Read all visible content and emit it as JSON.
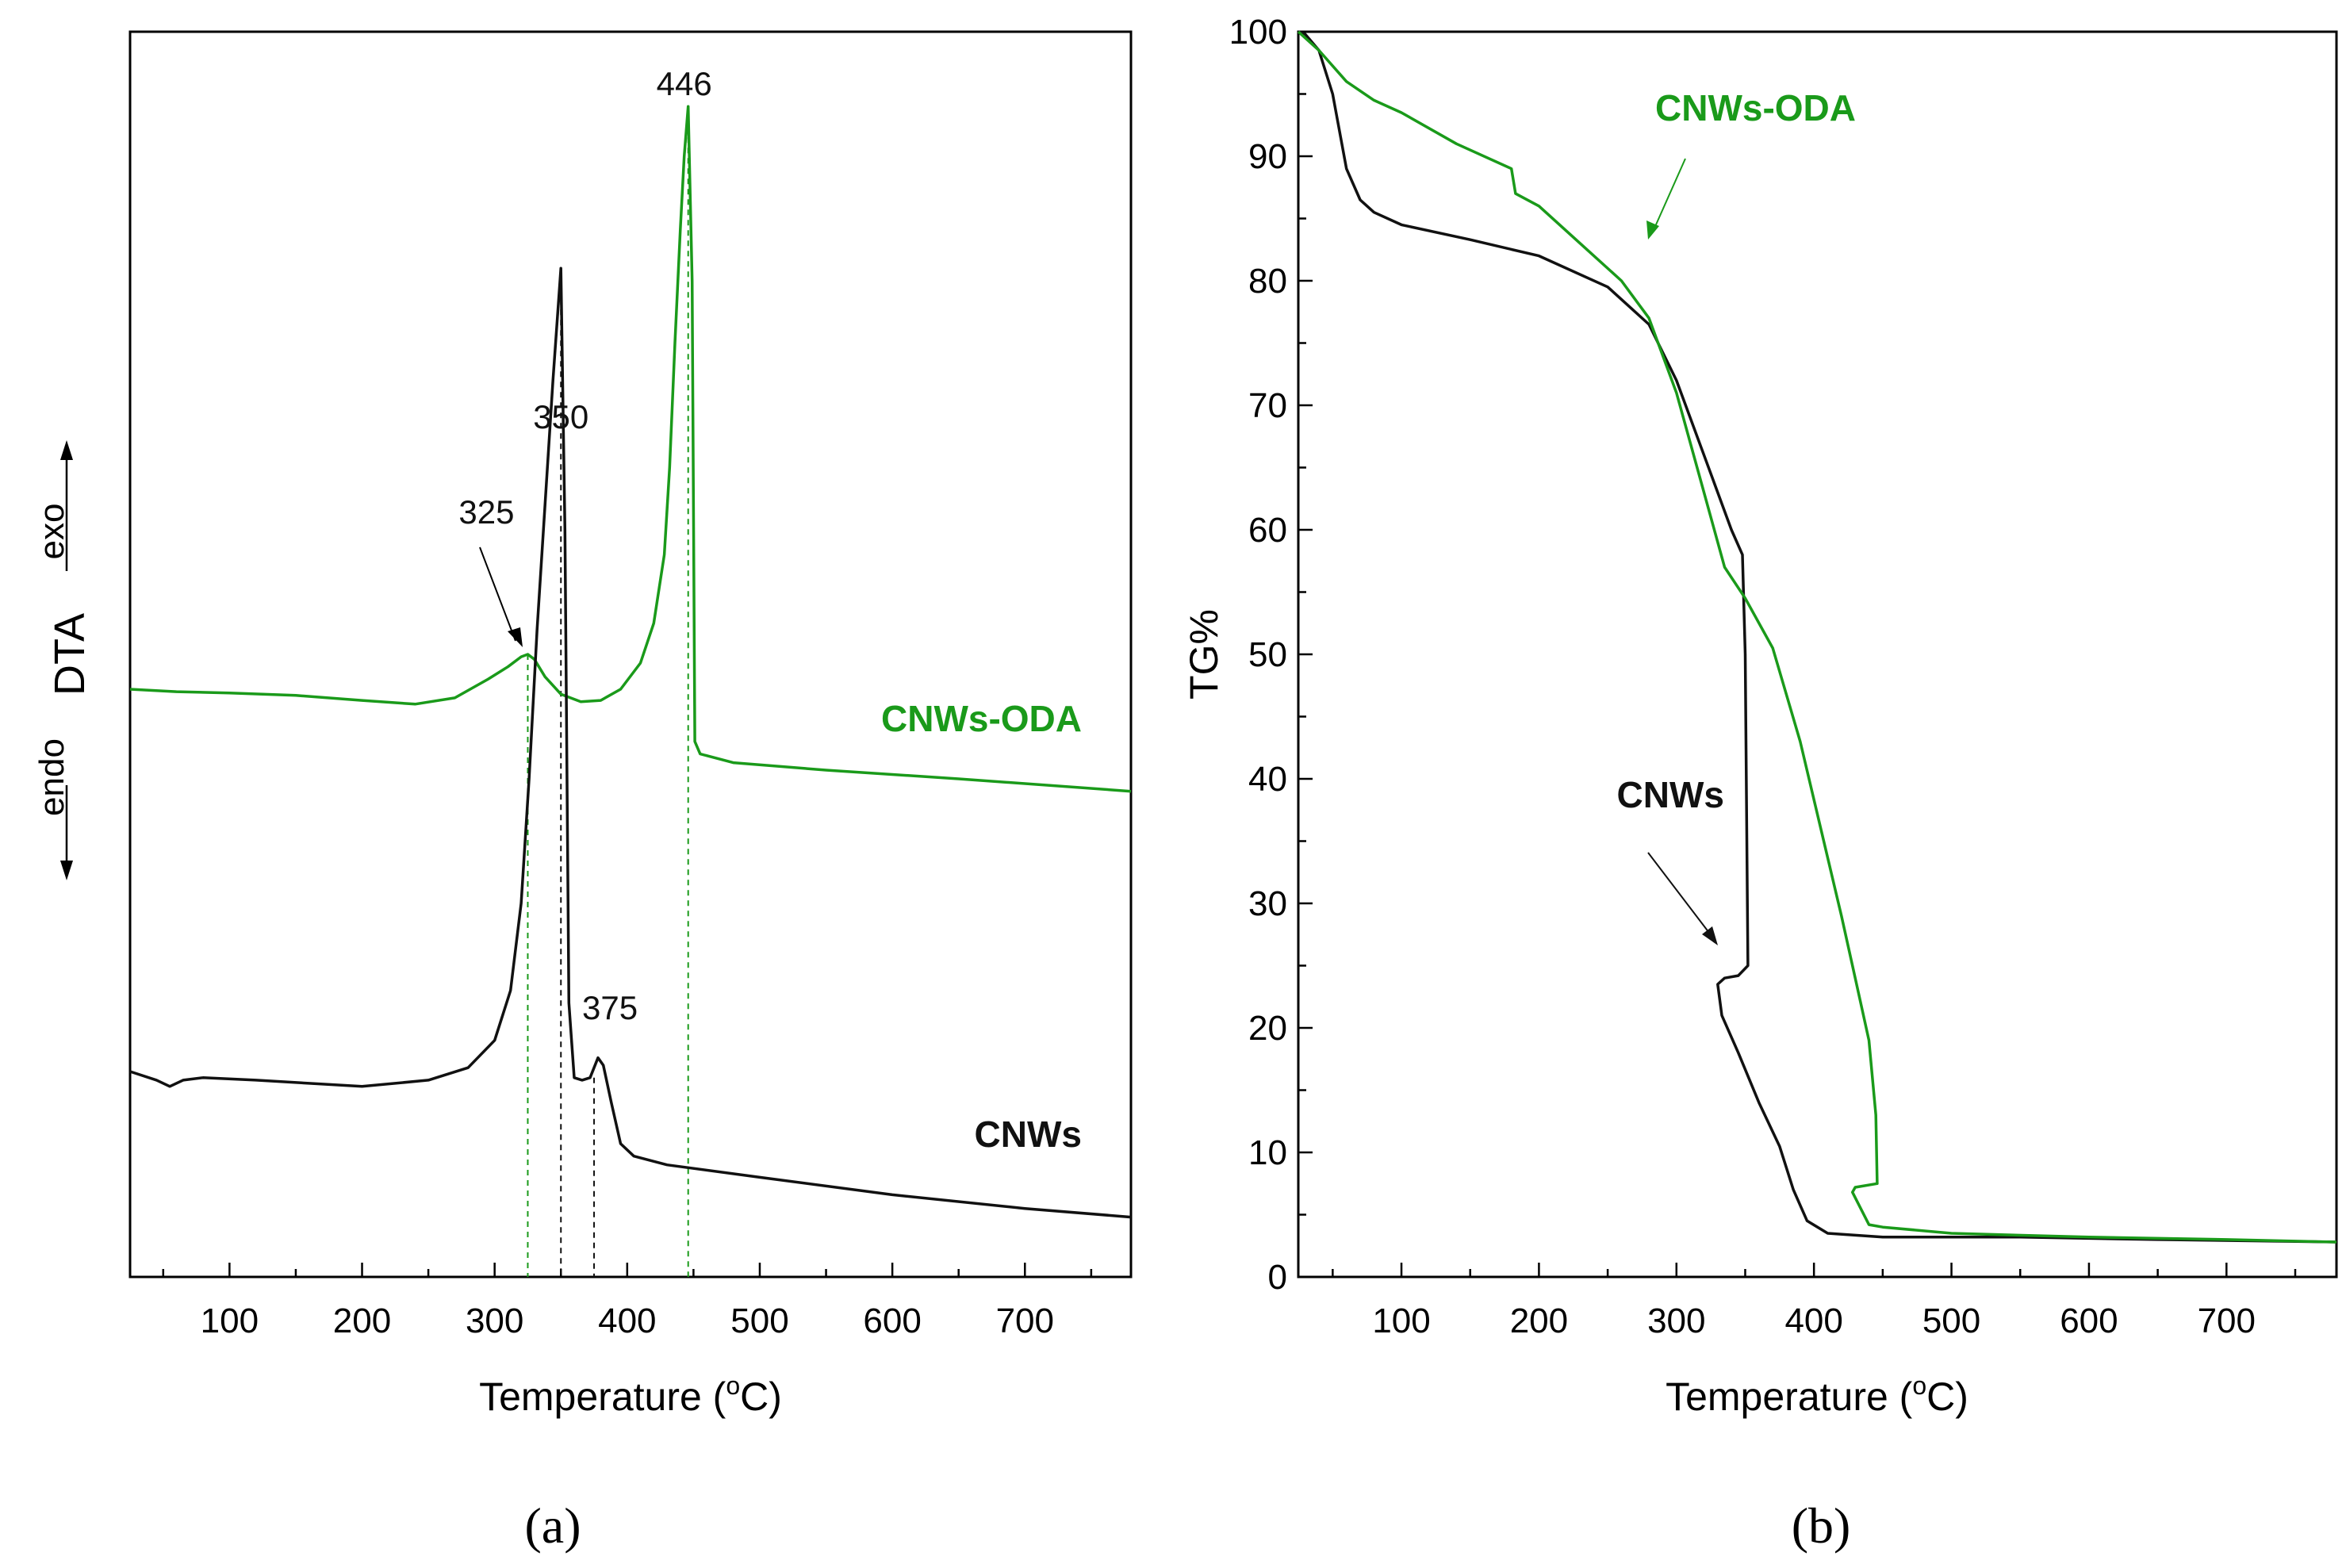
{
  "colors": {
    "green": "#1a9a1a",
    "black": "#111111",
    "axis": "#000000"
  },
  "chart_data": [
    {
      "type": "line",
      "title": "",
      "panel_label": "(a)",
      "xlabel": "Temperature (°C)",
      "xlabel_parts": {
        "pre": "Temperature (",
        "sup": "o",
        "post": "C)"
      },
      "ylabel": "DTA",
      "ylabel_endo": "endo",
      "ylabel_exo": "exo",
      "xlim": [
        25,
        780
      ],
      "ylim": [
        0,
        100
      ],
      "xticks": [
        100,
        200,
        300,
        400,
        500,
        600,
        700
      ],
      "yticks_shown": false,
      "series": [
        {
          "name": "CNWs-ODA",
          "color": "#1a9a1a",
          "x": [
            25,
            60,
            100,
            150,
            200,
            240,
            270,
            295,
            310,
            320,
            325,
            330,
            338,
            350,
            365,
            380,
            395,
            410,
            420,
            428,
            432,
            436,
            440,
            443,
            446,
            449,
            451,
            455,
            480,
            550,
            650,
            780
          ],
          "y": [
            47.2,
            47.0,
            46.9,
            46.7,
            46.3,
            46.0,
            46.5,
            48.0,
            49.0,
            49.8,
            50.0,
            49.6,
            48.2,
            46.8,
            46.2,
            46.3,
            47.2,
            49.3,
            52.5,
            58.0,
            65.0,
            75.0,
            84.0,
            90.0,
            94.0,
            80.0,
            43.0,
            42.0,
            41.3,
            40.7,
            40.0,
            39.0
          ]
        },
        {
          "name": "CNWs",
          "color": "#111111",
          "x": [
            25,
            45,
            55,
            65,
            80,
            120,
            200,
            250,
            280,
            300,
            312,
            320,
            326,
            332,
            338,
            344,
            350,
            353,
            356,
            360,
            366,
            372,
            378,
            382,
            388,
            395,
            405,
            430,
            500,
            600,
            700,
            780
          ],
          "y": [
            16.5,
            15.8,
            15.3,
            15.8,
            16.0,
            15.8,
            15.3,
            15.8,
            16.8,
            19.0,
            23.0,
            30.0,
            40.0,
            52.0,
            62.0,
            72.0,
            81.0,
            60.0,
            22.0,
            16.0,
            15.8,
            16.0,
            17.6,
            17.0,
            14.0,
            10.7,
            9.7,
            9.0,
            8.0,
            6.6,
            5.5,
            4.8
          ]
        }
      ],
      "peaks": [
        {
          "x": 325,
          "label": "325",
          "series": "CNWs-ODA"
        },
        {
          "x": 350,
          "label": "350",
          "series": "CNWs"
        },
        {
          "x": 375,
          "label": "375",
          "series": "CNWs"
        },
        {
          "x": 446,
          "label": "446",
          "series": "CNWs-ODA"
        }
      ],
      "annotations": [
        {
          "text": "CNWs-ODA",
          "color": "#1a9a1a"
        },
        {
          "text": "CNWs",
          "color": "#111111"
        }
      ]
    },
    {
      "type": "line",
      "title": "",
      "panel_label": "(b)",
      "xlabel": "Temperature (°C)",
      "xlabel_parts": {
        "pre": "Temperature (",
        "sup": "o",
        "post": "C)"
      },
      "ylabel": "TG%",
      "xlim": [
        25,
        780
      ],
      "ylim": [
        0,
        100
      ],
      "xticks": [
        100,
        200,
        300,
        400,
        500,
        600,
        700
      ],
      "yticks": [
        0,
        10,
        20,
        30,
        40,
        50,
        60,
        70,
        80,
        90,
        100
      ],
      "series": [
        {
          "name": "CNWs",
          "color": "#111111",
          "x": [
            25,
            30,
            40,
            50,
            60,
            70,
            80,
            100,
            150,
            200,
            250,
            280,
            300,
            320,
            340,
            348,
            350,
            352,
            345,
            335,
            330,
            333,
            345,
            360,
            375,
            385,
            395,
            410,
            450,
            550,
            650,
            780
          ],
          "y": [
            100,
            99.8,
            98.5,
            95,
            89,
            86.5,
            85.5,
            84.5,
            83.3,
            82,
            79.5,
            76.5,
            72,
            66,
            60,
            58,
            50,
            25,
            24.2,
            24,
            23.5,
            21,
            18,
            14,
            10.5,
            7,
            4.5,
            3.5,
            3.2,
            3.2,
            3.0,
            2.8
          ]
        },
        {
          "name": "CNWs-ODA",
          "color": "#1a9a1a",
          "x": [
            25,
            40,
            60,
            80,
            100,
            140,
            180,
            183,
            200,
            230,
            260,
            280,
            300,
            320,
            335,
            350,
            370,
            390,
            405,
            420,
            430,
            440,
            445,
            446,
            430,
            428,
            440,
            450,
            500,
            600,
            700,
            780
          ],
          "y": [
            100,
            98.5,
            96,
            94.5,
            93.5,
            91,
            89,
            87,
            86,
            83,
            80,
            77,
            71,
            63,
            57,
            54.5,
            50.5,
            43,
            36,
            29,
            24,
            19,
            13,
            7.5,
            7.2,
            6.8,
            4.2,
            4.0,
            3.5,
            3.2,
            3.0,
            2.8
          ]
        }
      ],
      "annotations": [
        {
          "text": "CNWs-ODA",
          "color": "#1a9a1a"
        },
        {
          "text": "CNWs",
          "color": "#111111"
        }
      ]
    }
  ]
}
